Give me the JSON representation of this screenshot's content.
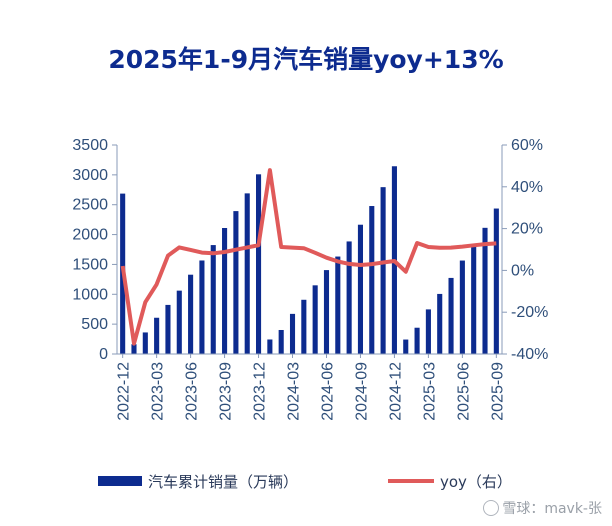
{
  "chart_data": {
    "type": "bar+line",
    "title": "2025年1-9月汽车销量yoy+13%",
    "categories": [
      "2022-12",
      "2023-01",
      "2023-02",
      "2023-03",
      "2023-04",
      "2023-05",
      "2023-06",
      "2023-07",
      "2023-08",
      "2023-09",
      "2023-10",
      "2023-11",
      "2023-12",
      "2024-01",
      "2024-02",
      "2024-03",
      "2024-04",
      "2024-05",
      "2024-06",
      "2024-07",
      "2024-08",
      "2024-09",
      "2024-10",
      "2024-11",
      "2024-12",
      "2025-01",
      "2025-02",
      "2025-03",
      "2025-04",
      "2025-05",
      "2025-06",
      "2025-07",
      "2025-08",
      "2025-09"
    ],
    "x_tick_labels": [
      "2022-12",
      "2023-03",
      "2023-06",
      "2023-09",
      "2023-12",
      "2024-03",
      "2024-06",
      "2024-09",
      "2024-12",
      "2025-03",
      "2025-06",
      "2025-09"
    ],
    "series": [
      {
        "name": "汽车累计销量（万辆）",
        "type": "bar",
        "axis": "left",
        "color": "#0d2b8f",
        "values": [
          2686,
          164,
          361,
          607,
          822,
          1061,
          1328,
          1566,
          1824,
          2110,
          2393,
          2690,
          3009,
          243,
          402,
          672,
          908,
          1150,
          1405,
          1632,
          1885,
          2165,
          2478,
          2794,
          3144,
          242,
          440,
          747,
          1006,
          1274,
          1565,
          1827,
          2113,
          2436
        ]
      },
      {
        "name": "yoy（右）",
        "type": "line",
        "axis": "right",
        "color": "#e05a5a",
        "values": [
          2.1,
          -35.0,
          -15.2,
          -6.7,
          7.1,
          11.0,
          9.8,
          8.5,
          8.2,
          8.8,
          9.9,
          11.0,
          12.0,
          48.0,
          11.2,
          10.9,
          10.6,
          8.4,
          6.1,
          4.3,
          3.1,
          2.6,
          3.0,
          3.8,
          4.5,
          -0.6,
          13.1,
          11.2,
          10.8,
          10.9,
          11.4,
          12.0,
          12.6,
          12.9
        ]
      }
    ],
    "y_left": {
      "min": 0,
      "max": 3500,
      "ticks": [
        "0",
        "500",
        "1000",
        "1500",
        "2000",
        "2500",
        "3000",
        "3500"
      ]
    },
    "y_right": {
      "min": -40,
      "max": 60,
      "ticks": [
        "-40%",
        "-20%",
        "0%",
        "20%",
        "40%",
        "60%"
      ]
    },
    "legend": {
      "placement": "bottom",
      "bar_label": "汽车累计销量（万辆）",
      "line_label": "yoy（右）"
    },
    "grid": false
  },
  "watermark": {
    "text": "雪球：mavk-张"
  }
}
